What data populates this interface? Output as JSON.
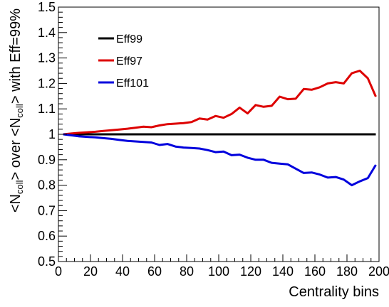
{
  "chart_data": {
    "type": "line",
    "title": "",
    "xlabel": "Centrality bins",
    "ylabel_parts": [
      "<N",
      "coll",
      "> over <N",
      "coll",
      "> with Eff=99%"
    ],
    "xlim": [
      0,
      200
    ],
    "ylim": [
      0.5,
      1.5
    ],
    "xticks": [
      0,
      20,
      40,
      60,
      80,
      100,
      120,
      140,
      160,
      180,
      200
    ],
    "yticks": [
      0.5,
      0.6,
      0.7,
      0.8,
      0.9,
      1,
      1.1,
      1.2,
      1.3,
      1.4,
      1.5
    ],
    "grid": false,
    "legend_position": "top-left",
    "series": [
      {
        "name": "Eff99",
        "color": "#000000",
        "x": [
          3,
          198
        ],
        "y": [
          1.0,
          1.0
        ]
      },
      {
        "name": "Eff97",
        "color": "#dd0000",
        "x": [
          3,
          8,
          13,
          18,
          23,
          28,
          33,
          38,
          43,
          48,
          53,
          58,
          63,
          68,
          73,
          78,
          83,
          88,
          93,
          98,
          103,
          108,
          113,
          118,
          123,
          128,
          133,
          138,
          143,
          148,
          153,
          158,
          163,
          168,
          173,
          178,
          183,
          188,
          193,
          198
        ],
        "y": [
          1.0,
          1.003,
          1.006,
          1.008,
          1.01,
          1.013,
          1.016,
          1.019,
          1.022,
          1.026,
          1.03,
          1.028,
          1.035,
          1.04,
          1.042,
          1.044,
          1.048,
          1.062,
          1.058,
          1.072,
          1.065,
          1.08,
          1.105,
          1.082,
          1.115,
          1.108,
          1.112,
          1.148,
          1.138,
          1.14,
          1.178,
          1.175,
          1.185,
          1.2,
          1.205,
          1.2,
          1.24,
          1.25,
          1.22,
          1.148
        ]
      },
      {
        "name": "Eff101",
        "color": "#0000dd",
        "x": [
          3,
          8,
          13,
          18,
          23,
          28,
          33,
          38,
          43,
          48,
          53,
          58,
          63,
          68,
          73,
          78,
          83,
          88,
          93,
          98,
          103,
          108,
          113,
          118,
          123,
          128,
          133,
          138,
          143,
          148,
          153,
          158,
          163,
          168,
          173,
          178,
          183,
          188,
          193,
          198
        ],
        "y": [
          1.0,
          0.996,
          0.992,
          0.99,
          0.988,
          0.985,
          0.982,
          0.978,
          0.974,
          0.972,
          0.97,
          0.968,
          0.958,
          0.962,
          0.952,
          0.948,
          0.946,
          0.944,
          0.938,
          0.93,
          0.932,
          0.918,
          0.92,
          0.908,
          0.9,
          0.9,
          0.888,
          0.885,
          0.882,
          0.865,
          0.848,
          0.85,
          0.842,
          0.83,
          0.832,
          0.822,
          0.8,
          0.815,
          0.828,
          0.88
        ]
      }
    ]
  }
}
